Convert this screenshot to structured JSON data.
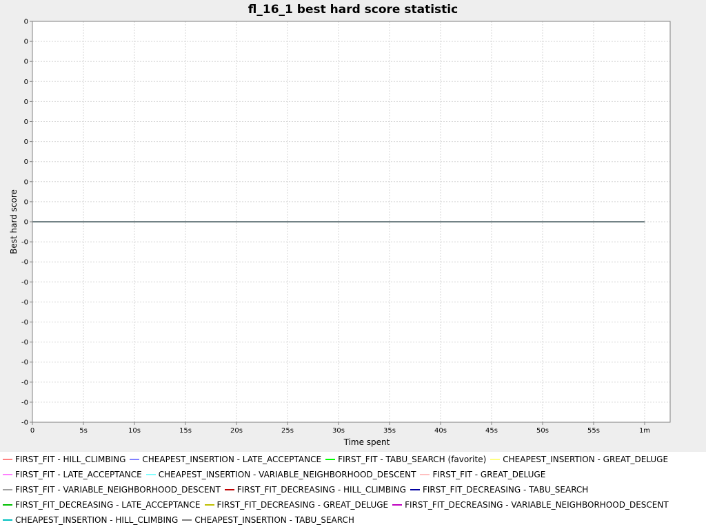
{
  "chart_data": {
    "type": "line",
    "title": "fl_16_1 best hard score statistic",
    "xlabel": "Time spent",
    "ylabel": "Best hard score",
    "x_ticks": [
      "0",
      "5s",
      "10s",
      "15s",
      "20s",
      "25s",
      "30s",
      "35s",
      "40s",
      "45s",
      "50s",
      "55s",
      "1m"
    ],
    "y_ticks": [
      "0",
      "0",
      "0",
      "0",
      "0",
      "0",
      "0",
      "0",
      "0",
      "0",
      "0",
      "-0",
      "-0",
      "-0",
      "-0",
      "-0",
      "-0",
      "-0",
      "-0",
      "-0",
      "-0"
    ],
    "xlim": [
      0,
      62.5
    ],
    "ylim": [
      -1,
      1
    ],
    "x_unit": "seconds",
    "grid": true,
    "legend_position": "bottom",
    "series": [
      {
        "name": "FIRST_FIT - HILL_CLIMBING",
        "color": "#ff8080",
        "x": [
          0,
          60
        ],
        "y": [
          0,
          0
        ]
      },
      {
        "name": "CHEAPEST_INSERTION - LATE_ACCEPTANCE",
        "color": "#8080ff",
        "x": [
          0,
          60
        ],
        "y": [
          0,
          0
        ]
      },
      {
        "name": "FIRST_FIT - TABU_SEARCH (favorite)",
        "color": "#00ff00",
        "x": [
          0,
          60
        ],
        "y": [
          0,
          0
        ]
      },
      {
        "name": "CHEAPEST_INSERTION - GREAT_DELUGE",
        "color": "#ffff80",
        "x": [
          0,
          60
        ],
        "y": [
          0,
          0
        ]
      },
      {
        "name": "FIRST_FIT - LATE_ACCEPTANCE",
        "color": "#ff80ff",
        "x": [
          0,
          60
        ],
        "y": [
          0,
          0
        ]
      },
      {
        "name": "CHEAPEST_INSERTION - VARIABLE_NEIGHBORHOOD_DESCENT",
        "color": "#80ffff",
        "x": [
          0,
          60
        ],
        "y": [
          0,
          0
        ]
      },
      {
        "name": "FIRST_FIT - GREAT_DELUGE",
        "color": "#ffc0c0",
        "x": [
          0,
          60
        ],
        "y": [
          0,
          0
        ]
      },
      {
        "name": "FIRST_FIT - VARIABLE_NEIGHBORHOOD_DESCENT",
        "color": "#a0a0a0",
        "x": [
          0,
          60
        ],
        "y": [
          0,
          0
        ]
      },
      {
        "name": "FIRST_FIT_DECREASING - HILL_CLIMBING",
        "color": "#c00000",
        "x": [
          0,
          60
        ],
        "y": [
          0,
          0
        ]
      },
      {
        "name": "FIRST_FIT_DECREASING - TABU_SEARCH",
        "color": "#0000a0",
        "x": [
          0,
          60
        ],
        "y": [
          0,
          0
        ]
      },
      {
        "name": "FIRST_FIT_DECREASING - LATE_ACCEPTANCE",
        "color": "#00c000",
        "x": [
          0,
          60
        ],
        "y": [
          0,
          0
        ]
      },
      {
        "name": "FIRST_FIT_DECREASING - GREAT_DELUGE",
        "color": "#c0c000",
        "x": [
          0,
          60
        ],
        "y": [
          0,
          0
        ]
      },
      {
        "name": "FIRST_FIT_DECREASING - VARIABLE_NEIGHBORHOOD_DESCENT",
        "color": "#c000c0",
        "x": [
          0,
          60
        ],
        "y": [
          0,
          0
        ]
      },
      {
        "name": "CHEAPEST_INSERTION - HILL_CLIMBING",
        "color": "#00c0c0",
        "x": [
          0,
          60
        ],
        "y": [
          0,
          0
        ]
      },
      {
        "name": "CHEAPEST_INSERTION - TABU_SEARCH",
        "color": "#808080",
        "x": [
          0,
          60
        ],
        "y": [
          0,
          0
        ]
      }
    ]
  }
}
